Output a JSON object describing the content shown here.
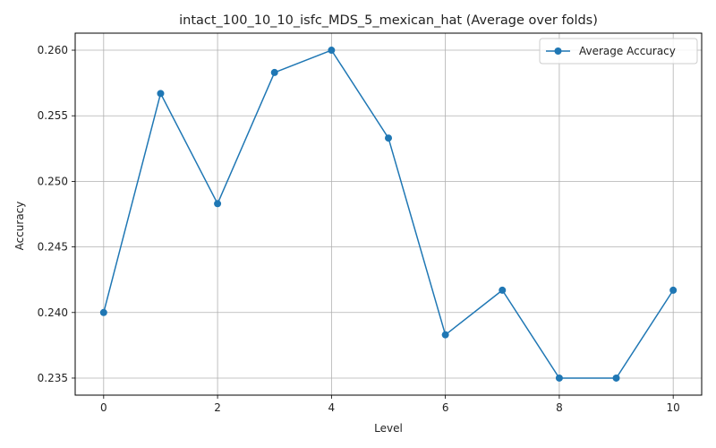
{
  "chart_data": {
    "type": "line",
    "title": "intact_100_10_10_isfc_MDS_5_mexican_hat (Average over folds)",
    "xlabel": "Level",
    "ylabel": "Accuracy",
    "x": [
      0,
      1,
      2,
      3,
      4,
      5,
      6,
      7,
      8,
      9,
      10
    ],
    "series": [
      {
        "name": "Average Accuracy",
        "color": "#1f77b4",
        "marker": "circle",
        "values": [
          0.24,
          0.2567,
          0.2483,
          0.2583,
          0.26,
          0.2533,
          0.2383,
          0.2417,
          0.235,
          0.235,
          0.2417
        ]
      }
    ],
    "xlim": [
      -0.5,
      10.5
    ],
    "ylim": [
      0.2337,
      0.2613
    ],
    "xticks": [
      0,
      2,
      4,
      6,
      8,
      10
    ],
    "xtick_labels": [
      "0",
      "2",
      "4",
      "6",
      "8",
      "10"
    ],
    "yticks": [
      0.235,
      0.24,
      0.245,
      0.25,
      0.255,
      0.26
    ],
    "ytick_labels": [
      "0.235",
      "0.240",
      "0.245",
      "0.250",
      "0.255",
      "0.260"
    ],
    "grid": true,
    "legend_position": "top-right"
  }
}
